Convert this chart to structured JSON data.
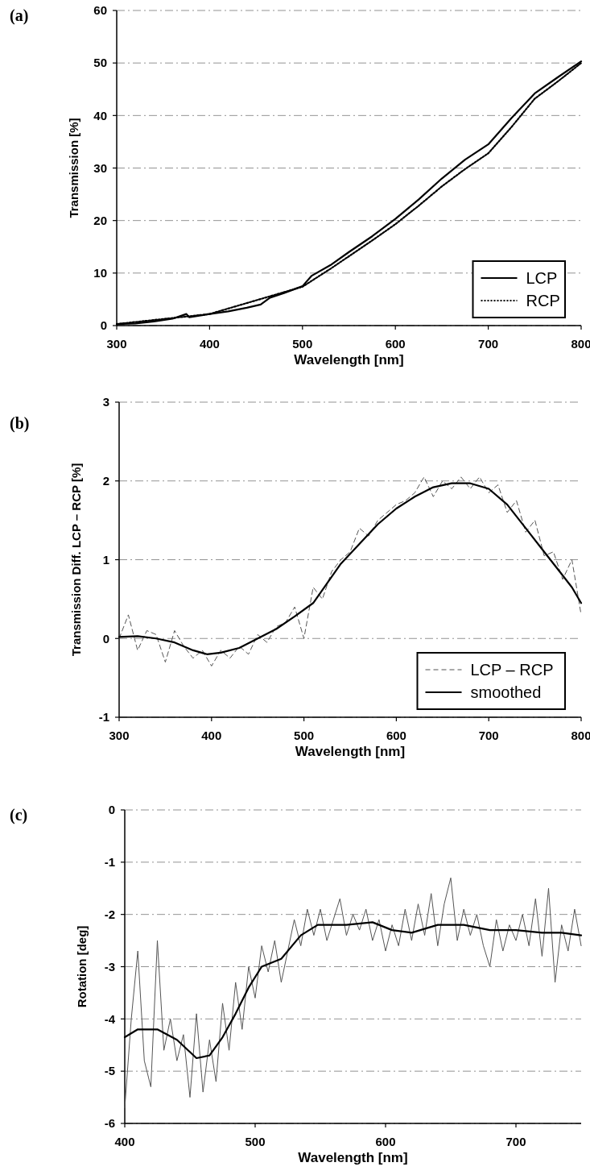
{
  "chart_data": [
    {
      "type": "line",
      "xlabel": "Wavelength [nm]",
      "ylabel": "Transmission [%]",
      "annotations": [
        "(a)"
      ],
      "xlim": [
        300,
        800
      ],
      "xticks": [
        300,
        400,
        500,
        600,
        700,
        800
      ],
      "ylim": [
        0,
        60
      ],
      "yticks": [
        0,
        10,
        20,
        30,
        40,
        50,
        60
      ],
      "grid": "y",
      "legend": "bottom right",
      "series": [
        {
          "name": "LCP",
          "color": "#000000",
          "line_style": "solid",
          "x": [
            300,
            320,
            340,
            360,
            375,
            378,
            400,
            420,
            440,
            455,
            465,
            480,
            500,
            510,
            530,
            550,
            575,
            600,
            625,
            650,
            675,
            700,
            725,
            750,
            775,
            800
          ],
          "values": [
            0.3,
            0.4,
            0.8,
            1.3,
            2.2,
            1.6,
            2.2,
            2.7,
            3.4,
            4.0,
            5.3,
            6.2,
            7.5,
            9.5,
            11.5,
            14.0,
            17.0,
            20.3,
            24.0,
            28.0,
            31.6,
            34.5,
            39.5,
            44.2,
            47.3,
            50.3
          ]
        },
        {
          "name": "RCP",
          "color": "#000000",
          "line_style": "dotted",
          "x": [
            300,
            400,
            500,
            530,
            550,
            575,
            600,
            625,
            650,
            675,
            700,
            725,
            750,
            775,
            800
          ],
          "values": [
            0.3,
            2.2,
            7.4,
            10.8,
            13.2,
            16.2,
            19.3,
            22.8,
            26.5,
            29.8,
            32.8,
            37.8,
            43.2,
            46.5,
            50.0
          ]
        }
      ]
    },
    {
      "type": "line",
      "xlabel": "Wavelength [nm]",
      "ylabel": "Transmission Diff. LCP – RCP [%]",
      "annotations": [
        "(b)"
      ],
      "xlim": [
        300,
        800
      ],
      "xticks": [
        300,
        400,
        500,
        600,
        700,
        800
      ],
      "ylim": [
        -1,
        3
      ],
      "yticks": [
        -1,
        0,
        1,
        2,
        3
      ],
      "grid": "y",
      "legend": "bottom right",
      "series": [
        {
          "name": "LCP – RCP",
          "color": "#555555",
          "line_style": "dashed",
          "x": [
            300,
            310,
            320,
            330,
            340,
            350,
            360,
            370,
            380,
            390,
            400,
            410,
            420,
            430,
            440,
            450,
            460,
            470,
            480,
            490,
            500,
            510,
            520,
            530,
            540,
            550,
            560,
            570,
            580,
            590,
            600,
            610,
            620,
            630,
            640,
            650,
            660,
            670,
            680,
            690,
            700,
            710,
            720,
            730,
            740,
            750,
            760,
            770,
            780,
            790,
            800
          ],
          "values": [
            0.0,
            0.3,
            -0.15,
            0.1,
            0.05,
            -0.3,
            0.1,
            -0.1,
            -0.25,
            -0.15,
            -0.35,
            -0.15,
            -0.25,
            -0.1,
            -0.2,
            0.05,
            -0.05,
            0.15,
            0.2,
            0.4,
            0.0,
            0.65,
            0.5,
            0.85,
            1.0,
            1.1,
            1.4,
            1.3,
            1.5,
            1.6,
            1.7,
            1.75,
            1.85,
            2.05,
            1.8,
            2.0,
            1.9,
            2.05,
            1.9,
            2.05,
            1.85,
            1.95,
            1.6,
            1.75,
            1.35,
            1.5,
            1.05,
            1.1,
            0.75,
            1.0,
            0.3
          ]
        },
        {
          "name": "smoothed",
          "color": "#000000",
          "line_style": "solid",
          "x": [
            300,
            320,
            340,
            360,
            380,
            395,
            410,
            430,
            450,
            470,
            490,
            510,
            525,
            540,
            560,
            580,
            600,
            620,
            640,
            660,
            680,
            700,
            720,
            740,
            760,
            780,
            790,
            800
          ],
          "values": [
            0.02,
            0.03,
            0.0,
            -0.05,
            -0.15,
            -0.2,
            -0.18,
            -0.12,
            0.0,
            0.12,
            0.28,
            0.45,
            0.7,
            0.95,
            1.2,
            1.45,
            1.65,
            1.8,
            1.92,
            1.97,
            1.97,
            1.9,
            1.7,
            1.4,
            1.1,
            0.8,
            0.65,
            0.45
          ]
        }
      ]
    },
    {
      "type": "line",
      "xlabel": "Wavelength [nm]",
      "ylabel": "Rotation [deg]",
      "annotations": [
        "(c)"
      ],
      "xlim": [
        400,
        750
      ],
      "xticks": [
        400,
        500,
        600,
        700
      ],
      "ylim": [
        -6,
        0
      ],
      "yticks": [
        -6,
        -5,
        -4,
        -3,
        -2,
        -1,
        0
      ],
      "grid": "y",
      "series": [
        {
          "color": "#555555",
          "line_style": "solid",
          "x": [
            400,
            405,
            410,
            415,
            420,
            425,
            430,
            435,
            440,
            445,
            450,
            455,
            460,
            465,
            470,
            475,
            480,
            485,
            490,
            495,
            500,
            505,
            510,
            515,
            520,
            525,
            530,
            535,
            540,
            545,
            550,
            555,
            560,
            565,
            570,
            575,
            580,
            585,
            590,
            595,
            600,
            605,
            610,
            615,
            620,
            625,
            630,
            635,
            640,
            645,
            650,
            655,
            660,
            665,
            670,
            675,
            680,
            685,
            690,
            695,
            700,
            705,
            710,
            715,
            720,
            725,
            730,
            735,
            740,
            745,
            750
          ],
          "values": [
            -5.7,
            -4.0,
            -2.7,
            -4.8,
            -5.3,
            -2.5,
            -4.6,
            -4.0,
            -4.8,
            -4.3,
            -5.5,
            -3.9,
            -5.4,
            -4.4,
            -5.2,
            -3.7,
            -4.6,
            -3.3,
            -4.2,
            -3.0,
            -3.6,
            -2.6,
            -3.1,
            -2.5,
            -3.3,
            -2.7,
            -2.1,
            -2.6,
            -1.9,
            -2.4,
            -1.9,
            -2.5,
            -2.1,
            -1.7,
            -2.4,
            -2.0,
            -2.3,
            -1.9,
            -2.5,
            -2.1,
            -2.7,
            -2.2,
            -2.6,
            -1.9,
            -2.5,
            -1.8,
            -2.4,
            -1.6,
            -2.6,
            -1.8,
            -1.3,
            -2.5,
            -1.9,
            -2.4,
            -2.0,
            -2.6,
            -3.0,
            -2.1,
            -2.7,
            -2.2,
            -2.5,
            -2.0,
            -2.6,
            -1.7,
            -2.8,
            -1.5,
            -3.3,
            -2.2,
            -2.7,
            -1.9,
            -2.6
          ]
        },
        {
          "color": "#000000",
          "line_style": "solid",
          "x": [
            400,
            410,
            425,
            440,
            455,
            465,
            475,
            485,
            495,
            505,
            520,
            535,
            548,
            570,
            590,
            605,
            620,
            640,
            660,
            680,
            700,
            720,
            735,
            750
          ],
          "values": [
            -4.35,
            -4.2,
            -4.2,
            -4.4,
            -4.75,
            -4.7,
            -4.35,
            -3.9,
            -3.4,
            -3.0,
            -2.85,
            -2.4,
            -2.2,
            -2.2,
            -2.15,
            -2.3,
            -2.35,
            -2.2,
            -2.2,
            -2.3,
            -2.3,
            -2.35,
            -2.35,
            -2.4
          ]
        }
      ]
    }
  ]
}
